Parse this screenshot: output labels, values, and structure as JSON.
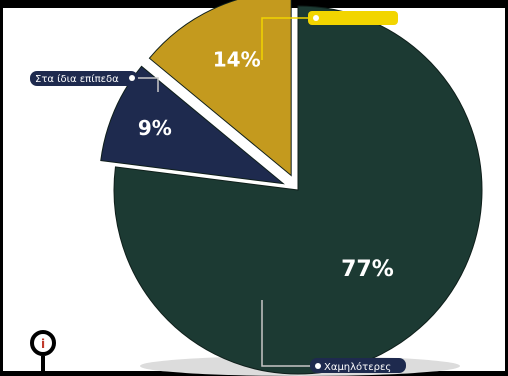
{
  "chart_data": {
    "type": "pie",
    "slices": [
      {
        "label": "Χαμηλότερες",
        "value": 77,
        "display": "77%",
        "color": "#1c3a33"
      },
      {
        "label": "Στα ίδια επίπεδα",
        "value": 9,
        "display": "9%",
        "color": "#1e2a4e"
      },
      {
        "label": "",
        "value": 14,
        "display": "14%",
        "color": "#c49a1e"
      }
    ],
    "start": "12 o'clock",
    "direction": "clockwise"
  },
  "colors": {
    "background": "#ffffff",
    "label_bg": "#1e2a4e",
    "label_yellow": "#f2d500",
    "leader": "#c8c8c8"
  },
  "icons": {
    "info": "info-icon"
  }
}
